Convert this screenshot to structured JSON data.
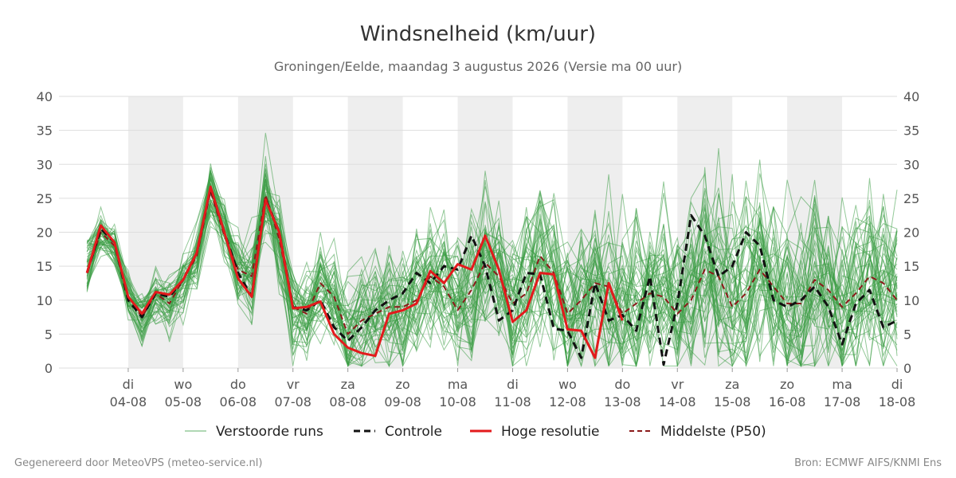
{
  "chart_data": {
    "type": "line",
    "title": "Windsnelheid (km/uur)",
    "subtitle": "Groningen/Eelde, maandag  3 augustus 2026 (Versie ma 00 uur)",
    "xlabel": "",
    "ylabel": "",
    "ylim": [
      0,
      40
    ],
    "yticks": [
      0,
      5,
      10,
      15,
      20,
      25,
      30,
      35,
      40
    ],
    "x_unit": "day index since 03-08",
    "xlim": [
      0,
      15
    ],
    "x_ticks": [
      {
        "x": 1,
        "day": "di",
        "date": "04-08"
      },
      {
        "x": 2,
        "day": "wo",
        "date": "05-08"
      },
      {
        "x": 3,
        "day": "do",
        "date": "06-08"
      },
      {
        "x": 4,
        "day": "vr",
        "date": "07-08"
      },
      {
        "x": 5,
        "day": "za",
        "date": "08-08"
      },
      {
        "x": 6,
        "day": "zo",
        "date": "09-08"
      },
      {
        "x": 7,
        "day": "ma",
        "date": "10-08"
      },
      {
        "x": 8,
        "day": "di",
        "date": "11-08"
      },
      {
        "x": 9,
        "day": "wo",
        "date": "12-08"
      },
      {
        "x": 10,
        "day": "do",
        "date": "13-08"
      },
      {
        "x": 11,
        "day": "vr",
        "date": "14-08"
      },
      {
        "x": 12,
        "day": "za",
        "date": "15-08"
      },
      {
        "x": 13,
        "day": "zo",
        "date": "16-08"
      },
      {
        "x": 14,
        "day": "ma",
        "date": "17-08"
      },
      {
        "x": 15,
        "day": "di",
        "date": "18-08"
      }
    ],
    "weekend_bands": [
      [
        1,
        2
      ],
      [
        3,
        4
      ],
      [
        5,
        6
      ],
      [
        7,
        8
      ],
      [
        9,
        10
      ],
      [
        11,
        12
      ],
      [
        13,
        14
      ]
    ],
    "grid": true,
    "legend_position": "bottom",
    "series": [
      {
        "name": "Controle",
        "color": "#111111",
        "dash": "dashed",
        "x": [
          0.25,
          0.5,
          0.75,
          1,
          1.25,
          1.5,
          1.75,
          2,
          2.25,
          2.5,
          2.75,
          3,
          3.25,
          3.5,
          3.75,
          4,
          4.25,
          4.5,
          4.75,
          5,
          5.25,
          5.5,
          5.75,
          6,
          6.25,
          6.5,
          6.75,
          7,
          7.25,
          7.5,
          7.75,
          8,
          8.25,
          8.5,
          8.75,
          9,
          9.25,
          9.5,
          9.75,
          10,
          10.25,
          10.5,
          10.75,
          11,
          11.25,
          11.5,
          11.75,
          12,
          12.25,
          12.5,
          12.75,
          13,
          13.25,
          13.5,
          13.75,
          14,
          14.25,
          14.5,
          14.75,
          15
        ],
        "y": [
          14,
          20.5,
          18.5,
          10,
          7.5,
          11,
          10.5,
          13,
          17,
          26.5,
          20,
          14,
          10.5,
          25,
          20,
          9,
          8.5,
          10,
          6,
          4,
          6,
          8.5,
          10,
          11,
          14,
          12.5,
          15,
          14.5,
          19.5,
          15,
          7,
          8.5,
          14,
          13.8,
          5.8,
          5.5,
          1.5,
          12.5,
          7,
          7.8,
          5.5,
          13.5,
          0.5,
          9.5,
          22.5,
          19.5,
          13.5,
          15,
          20,
          18,
          10,
          9,
          10,
          12,
          9,
          3.5,
          9.5,
          11.5,
          6,
          7
        ]
      },
      {
        "name": "Hoge resolutie",
        "color": "#e31a1c",
        "dash": "solid",
        "x": [
          0.25,
          0.5,
          0.75,
          1,
          1.25,
          1.5,
          1.75,
          2,
          2.25,
          2.5,
          2.75,
          3,
          3.25,
          3.5,
          3.75,
          4,
          4.25,
          4.5,
          4.75,
          5,
          5.25,
          5.5,
          5.75,
          6,
          6.25,
          6.5,
          6.75,
          7,
          7.25,
          7.5,
          7.75,
          8,
          8.25,
          8.5,
          8.75,
          9,
          9.25,
          9.5,
          9.75,
          10
        ],
        "y": [
          14,
          21,
          18.5,
          10.5,
          8,
          11.2,
          10.8,
          13,
          17,
          26.7,
          20,
          13.2,
          10.5,
          24.8,
          20,
          8.8,
          9,
          9.8,
          5,
          3,
          2.2,
          1.8,
          8,
          8.5,
          9.5,
          14.3,
          12.5,
          15.3,
          14.5,
          19.5,
          14.5,
          6.8,
          8.5,
          14,
          13.8,
          5.7,
          5.5,
          1.5,
          12.5,
          7
        ]
      },
      {
        "name": "Middelste (P50)",
        "color": "#8b1a1a",
        "dash": "dashed",
        "x": [
          0.25,
          0.5,
          0.75,
          1,
          1.25,
          1.5,
          1.75,
          2,
          2.25,
          2.5,
          2.75,
          3,
          3.25,
          3.5,
          3.75,
          4,
          4.25,
          4.5,
          4.75,
          5,
          5.25,
          5.5,
          5.75,
          6,
          6.25,
          6.5,
          6.75,
          7,
          7.25,
          7.5,
          7.75,
          8,
          8.25,
          8.5,
          8.75,
          9,
          9.25,
          9.5,
          9.75,
          10,
          10.25,
          10.5,
          10.75,
          11,
          11.25,
          11.5,
          11.75,
          12,
          12.25,
          12.5,
          12.75,
          13,
          13.25,
          13.5,
          13.75,
          14,
          14.25,
          14.5,
          14.75,
          15
        ],
        "y": [
          14,
          20,
          18,
          10.5,
          7.5,
          11,
          9.5,
          13,
          16.5,
          26,
          19.5,
          14.5,
          13.5,
          25.5,
          19,
          9,
          8,
          12.5,
          10.5,
          5,
          7,
          8,
          9,
          9,
          10,
          13.5,
          12,
          8.5,
          11.5,
          15.5,
          13.5,
          9.5,
          11,
          16.5,
          14,
          8,
          10,
          12.5,
          12,
          8,
          9.5,
          11,
          10.5,
          8,
          10,
          14.5,
          13.5,
          9,
          11,
          14.5,
          12,
          9.5,
          9.5,
          13,
          11.5,
          9,
          11,
          13.5,
          12.5,
          10
        ]
      }
    ],
    "legend": [
      {
        "label": "Verstoorde runs",
        "color": "#3a9d44",
        "style": "thin"
      },
      {
        "label": "Controle",
        "color": "#111111",
        "style": "dashed"
      },
      {
        "label": "Hoge resolutie",
        "color": "#e31a1c",
        "style": "solid"
      },
      {
        "label": "Middelste (P50)",
        "color": "#8b1a1a",
        "style": "dashed"
      }
    ],
    "ensemble": {
      "name": "Verstoorde runs",
      "color": "#3a9d44",
      "members": 50,
      "x_step": 0.25
    }
  },
  "footer": {
    "left": "Gegenereerd door MeteoVPS (meteo-service.nl)",
    "right": "Bron: ECMWF AIFS/KNMI Ens"
  }
}
